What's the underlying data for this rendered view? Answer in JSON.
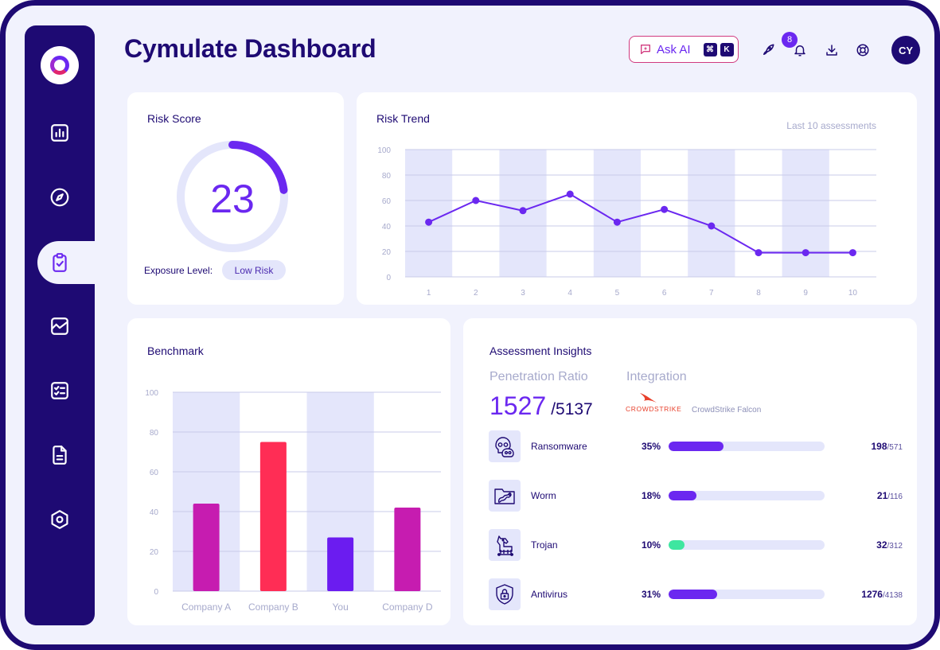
{
  "header": {
    "title": "Cymulate Dashboard",
    "ask_ai_label": "Ask AI",
    "shortcut_keys": [
      "⌘",
      "K"
    ],
    "notification_count": "8",
    "avatar_initials": "CY"
  },
  "sidebar": {
    "items": [
      {
        "icon": "bar-chart-icon"
      },
      {
        "icon": "compass-icon"
      },
      {
        "icon": "clipboard-check-icon",
        "active": true
      },
      {
        "icon": "activity-chart-icon"
      },
      {
        "icon": "checklist-icon"
      },
      {
        "icon": "document-icon"
      },
      {
        "icon": "settings-hexagon-icon"
      }
    ]
  },
  "risk_score": {
    "title": "Risk Score",
    "value": "23",
    "gauge_fraction": 0.23,
    "exposure_label": "Exposure Level:",
    "exposure_value": "Low Risk"
  },
  "risk_trend": {
    "title": "Risk Trend",
    "subtitle": "Last 10 assessments"
  },
  "benchmark": {
    "title": "Benchmark"
  },
  "insights": {
    "title": "Assessment Insights",
    "penetration_label": "Penetration Ratio",
    "penetration_value": "1527",
    "penetration_total": "/5137",
    "integration_label": "Integration",
    "integration_logo_text": "CROWDSTRIKE",
    "integration_name": "CrowdStrike Falcon",
    "rows": [
      {
        "name": "Ransomware",
        "percent": "35%",
        "fraction": 0.35,
        "count": "198",
        "total": "/571",
        "color": "#6b28f0",
        "icon": "skull-icon"
      },
      {
        "name": "Worm",
        "percent": "18%",
        "fraction": 0.18,
        "count": "21",
        "total": "/116",
        "color": "#6b28f0",
        "icon": "worm-folder-icon"
      },
      {
        "name": "Trojan",
        "percent": "10%",
        "fraction": 0.1,
        "count": "32",
        "total": "/312",
        "color": "#3ee6a0",
        "icon": "trojan-horse-icon"
      },
      {
        "name": "Antivirus",
        "percent": "31%",
        "fraction": 0.31,
        "count": "1276",
        "total": "/4138",
        "color": "#6b28f0",
        "icon": "shield-lock-icon"
      }
    ]
  },
  "chart_data": [
    {
      "type": "line",
      "title": "Risk Trend",
      "x": [
        1,
        2,
        3,
        4,
        5,
        6,
        7,
        8,
        9,
        10
      ],
      "series": [
        {
          "values": [
            43,
            60,
            52,
            65,
            43,
            53,
            40,
            19,
            19,
            19
          ]
        }
      ],
      "xticks": [
        "1",
        "2",
        "3",
        "4",
        "5",
        "6",
        "7",
        "8",
        "9",
        "10"
      ],
      "yticks": [
        "0",
        "20",
        "40",
        "60",
        "80",
        "100"
      ],
      "ylim": [
        0,
        100
      ],
      "grid": true,
      "color": "#6b28f0"
    },
    {
      "type": "bar",
      "title": "Benchmark",
      "categories": [
        "Company A",
        "Company B",
        "You",
        "Company D"
      ],
      "values": [
        44,
        75,
        27,
        42
      ],
      "colors": [
        "#c61cb0",
        "#ff2d55",
        "#6b1cf0",
        "#c61cb0"
      ],
      "yticks": [
        "0",
        "20",
        "40",
        "60",
        "80",
        "100"
      ],
      "ylim": [
        0,
        100
      ],
      "grid": true
    }
  ]
}
